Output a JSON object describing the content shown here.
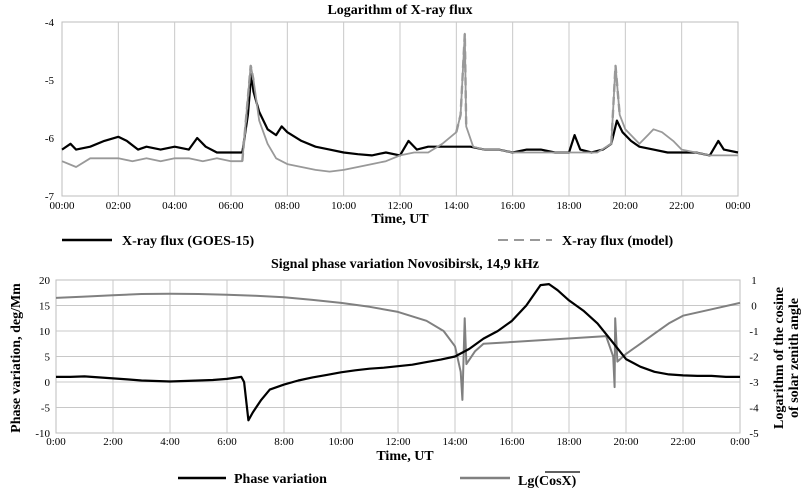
{
  "chart_data": [
    {
      "type": "line",
      "title": "Logarithm of X-ray flux",
      "xlabel": "Time, UT",
      "ylabel": "",
      "ylim": [
        -7,
        -4
      ],
      "yticks": [
        "-4",
        "-5",
        "-6",
        "-7"
      ],
      "xticks": [
        "00:00",
        "02:00",
        "04:00",
        "06:00",
        "08:00",
        "10:00",
        "12:00",
        "14:00",
        "16:00",
        "18:00",
        "20:00",
        "22:00",
        "00:00"
      ],
      "grid": "vertical",
      "legend_position": "bottom",
      "series": [
        {
          "name": "X-ray flux (GOES-15)",
          "color": "#000000",
          "style": "solid",
          "points": [
            [
              0,
              -6.2
            ],
            [
              0.3,
              -6.1
            ],
            [
              0.5,
              -6.2
            ],
            [
              1,
              -6.15
            ],
            [
              1.5,
              -6.05
            ],
            [
              2,
              -5.98
            ],
            [
              2.3,
              -6.05
            ],
            [
              2.7,
              -6.2
            ],
            [
              3,
              -6.15
            ],
            [
              3.5,
              -6.2
            ],
            [
              4,
              -6.15
            ],
            [
              4.5,
              -6.2
            ],
            [
              4.8,
              -6.0
            ],
            [
              5.1,
              -6.15
            ],
            [
              5.5,
              -6.25
            ],
            [
              6,
              -6.25
            ],
            [
              6.4,
              -6.25
            ],
            [
              6.6,
              -5.6
            ],
            [
              6.72,
              -4.9
            ],
            [
              6.8,
              -5.2
            ],
            [
              7,
              -5.55
            ],
            [
              7.3,
              -5.85
            ],
            [
              7.6,
              -5.95
            ],
            [
              7.8,
              -5.8
            ],
            [
              8,
              -5.9
            ],
            [
              8.5,
              -6.05
            ],
            [
              9,
              -6.15
            ],
            [
              9.5,
              -6.2
            ],
            [
              10,
              -6.25
            ],
            [
              10.5,
              -6.28
            ],
            [
              11,
              -6.3
            ],
            [
              11.5,
              -6.25
            ],
            [
              12,
              -6.3
            ],
            [
              12.3,
              -6.05
            ],
            [
              12.6,
              -6.2
            ],
            [
              13,
              -6.15
            ],
            [
              13.5,
              -6.15
            ],
            [
              14,
              -6.15
            ],
            [
              14.5,
              -6.15
            ],
            [
              15,
              -6.2
            ],
            [
              15.5,
              -6.2
            ],
            [
              16,
              -6.25
            ],
            [
              16.5,
              -6.2
            ],
            [
              17,
              -6.2
            ],
            [
              17.5,
              -6.25
            ],
            [
              18,
              -6.25
            ],
            [
              18.2,
              -5.95
            ],
            [
              18.4,
              -6.2
            ],
            [
              18.8,
              -6.25
            ],
            [
              19.2,
              -6.2
            ],
            [
              19.5,
              -6.1
            ],
            [
              19.7,
              -5.7
            ],
            [
              19.9,
              -5.9
            ],
            [
              20.2,
              -6.05
            ],
            [
              20.5,
              -6.15
            ],
            [
              21,
              -6.2
            ],
            [
              21.5,
              -6.25
            ],
            [
              22,
              -6.25
            ],
            [
              22.5,
              -6.25
            ],
            [
              23,
              -6.3
            ],
            [
              23.3,
              -6.05
            ],
            [
              23.5,
              -6.2
            ],
            [
              24,
              -6.25
            ]
          ]
        },
        {
          "name": "X-ray flux (model)",
          "color": "#999999",
          "style": "dashed",
          "points": [
            [
              0,
              -6.4
            ],
            [
              0.5,
              -6.5
            ],
            [
              1,
              -6.35
            ],
            [
              1.5,
              -6.35
            ],
            [
              2,
              -6.35
            ],
            [
              2.5,
              -6.4
            ],
            [
              3,
              -6.35
            ],
            [
              3.5,
              -6.4
            ],
            [
              4,
              -6.35
            ],
            [
              4.5,
              -6.35
            ],
            [
              5,
              -6.4
            ],
            [
              5.5,
              -6.35
            ],
            [
              6,
              -6.4
            ],
            [
              6.4,
              -6.4
            ],
            [
              6.6,
              -5.3
            ],
            [
              6.7,
              -4.75
            ],
            [
              6.8,
              -5.0
            ],
            [
              7,
              -5.7
            ],
            [
              7.3,
              -6.1
            ],
            [
              7.6,
              -6.35
            ],
            [
              8,
              -6.45
            ],
            [
              8.5,
              -6.5
            ],
            [
              9,
              -6.55
            ],
            [
              9.5,
              -6.58
            ],
            [
              10,
              -6.55
            ],
            [
              10.5,
              -6.5
            ],
            [
              11,
              -6.45
            ],
            [
              11.5,
              -6.4
            ],
            [
              12,
              -6.3
            ],
            [
              12.5,
              -6.25
            ],
            [
              13,
              -6.25
            ],
            [
              13.5,
              -6.1
            ],
            [
              14,
              -5.9
            ],
            [
              14.15,
              -5.6
            ],
            [
              14.3,
              -4.2
            ],
            [
              14.35,
              -5.8
            ],
            [
              14.6,
              -6.15
            ],
            [
              15,
              -6.2
            ],
            [
              15.5,
              -6.2
            ],
            [
              16,
              -6.25
            ],
            [
              16.5,
              -6.25
            ],
            [
              17,
              -6.25
            ],
            [
              17.5,
              -6.25
            ],
            [
              18,
              -6.25
            ],
            [
              18.5,
              -6.25
            ],
            [
              19,
              -6.25
            ],
            [
              19.5,
              -6.1
            ],
            [
              19.65,
              -4.75
            ],
            [
              19.8,
              -5.6
            ],
            [
              20,
              -5.85
            ],
            [
              20.5,
              -6.1
            ],
            [
              20.8,
              -5.95
            ],
            [
              21,
              -5.85
            ],
            [
              21.3,
              -5.9
            ],
            [
              21.7,
              -6.05
            ],
            [
              22,
              -6.2
            ],
            [
              22.5,
              -6.25
            ],
            [
              23,
              -6.3
            ],
            [
              23.5,
              -6.3
            ],
            [
              24,
              -6.3
            ]
          ]
        }
      ]
    },
    {
      "type": "line",
      "title": "Signal phase variation Novosibirsk, 14,9 kHz",
      "xlabel": "Time, UT",
      "ylabel": "Phase variation, deg/Mm",
      "y2label": "Logarithm of the cosine of solar zenith angle",
      "ylim": [
        -10,
        20
      ],
      "y2lim": [
        -5,
        1
      ],
      "yticks": [
        "20",
        "15",
        "10",
        "5",
        "0",
        "-5",
        "-10"
      ],
      "y2ticks": [
        "1",
        "0",
        "-1",
        "-2",
        "-3",
        "-4",
        "-5"
      ],
      "xticks": [
        "0:00",
        "2:00",
        "4:00",
        "6:00",
        "8:00",
        "10:00",
        "12:00",
        "14:00",
        "16:00",
        "18:00",
        "20:00",
        "22:00",
        "0:00"
      ],
      "grid": "both",
      "legend_position": "bottom",
      "series": [
        {
          "name": "Phase variation",
          "axis": "left",
          "color": "#000000",
          "style": "solid",
          "points": [
            [
              0,
              1.0
            ],
            [
              0.5,
              1.0
            ],
            [
              1,
              1.1
            ],
            [
              1.5,
              0.9
            ],
            [
              2,
              0.7
            ],
            [
              2.5,
              0.5
            ],
            [
              3,
              0.3
            ],
            [
              3.5,
              0.2
            ],
            [
              4,
              0.1
            ],
            [
              4.5,
              0.2
            ],
            [
              5,
              0.3
            ],
            [
              5.5,
              0.4
            ],
            [
              6,
              0.6
            ],
            [
              6.5,
              1.0
            ],
            [
              6.6,
              0.0
            ],
            [
              6.75,
              -7.5
            ],
            [
              6.9,
              -6.0
            ],
            [
              7.2,
              -3.5
            ],
            [
              7.5,
              -1.5
            ],
            [
              8,
              -0.5
            ],
            [
              8.5,
              0.3
            ],
            [
              9,
              0.9
            ],
            [
              9.5,
              1.4
            ],
            [
              10,
              1.9
            ],
            [
              10.5,
              2.3
            ],
            [
              11,
              2.6
            ],
            [
              11.5,
              2.8
            ],
            [
              12,
              3.1
            ],
            [
              12.5,
              3.4
            ],
            [
              13,
              3.9
            ],
            [
              13.5,
              4.4
            ],
            [
              14,
              5.0
            ],
            [
              14.5,
              6.5
            ],
            [
              15,
              8.5
            ],
            [
              15.5,
              10.0
            ],
            [
              16,
              12.0
            ],
            [
              16.5,
              15.0
            ],
            [
              17,
              19.0
            ],
            [
              17.3,
              19.2
            ],
            [
              17.6,
              18.0
            ],
            [
              18,
              16.0
            ],
            [
              18.5,
              14.0
            ],
            [
              19,
              11.5
            ],
            [
              19.5,
              8.0
            ],
            [
              20,
              4.5
            ],
            [
              20.5,
              3.0
            ],
            [
              21,
              2.0
            ],
            [
              21.5,
              1.5
            ],
            [
              22,
              1.3
            ],
            [
              22.5,
              1.2
            ],
            [
              23,
              1.2
            ],
            [
              23.5,
              1.0
            ],
            [
              24,
              1.0
            ]
          ]
        },
        {
          "name": "Lg(CosX)",
          "axis": "right",
          "color": "#808080",
          "style": "solid",
          "points": [
            [
              0,
              0.3
            ],
            [
              1,
              0.35
            ],
            [
              2,
              0.4
            ],
            [
              3,
              0.45
            ],
            [
              4,
              0.46
            ],
            [
              5,
              0.45
            ],
            [
              6,
              0.42
            ],
            [
              7,
              0.38
            ],
            [
              8,
              0.32
            ],
            [
              9,
              0.22
            ],
            [
              10,
              0.1
            ],
            [
              11,
              -0.05
            ],
            [
              12,
              -0.25
            ],
            [
              13,
              -0.6
            ],
            [
              13.6,
              -1.0
            ],
            [
              14,
              -1.6
            ],
            [
              14.2,
              -2.6
            ],
            [
              14.26,
              -3.7
            ],
            [
              14.3,
              -2.0
            ],
            [
              14.34,
              -0.5
            ],
            [
              14.4,
              -2.3
            ],
            [
              14.7,
              -1.8
            ],
            [
              15,
              -1.5
            ],
            [
              19.3,
              -1.2
            ],
            [
              19.55,
              -2.0
            ],
            [
              19.6,
              -3.2
            ],
            [
              19.62,
              -0.5
            ],
            [
              19.7,
              -2.2
            ],
            [
              20,
              -1.9
            ],
            [
              20.5,
              -1.5
            ],
            [
              21,
              -1.1
            ],
            [
              21.5,
              -0.7
            ],
            [
              22,
              -0.4
            ],
            [
              23,
              -0.15
            ],
            [
              24,
              0.1
            ]
          ]
        }
      ]
    }
  ]
}
